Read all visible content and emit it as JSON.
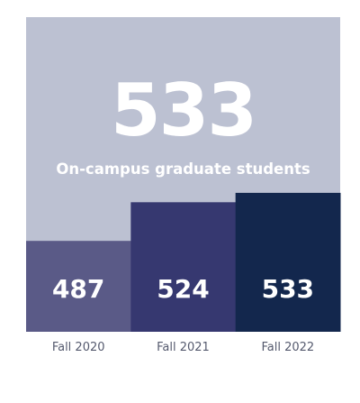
{
  "headline": {
    "value": "533",
    "subtitle": "On-campus graduate students"
  },
  "colors": {
    "panel_background": "#bcc1d2",
    "bars": [
      "#5a5a87",
      "#363870",
      "#13274d"
    ],
    "label_text": "#ffffff",
    "category_text": "#555a6e"
  },
  "chart_data": {
    "type": "bar",
    "title": "",
    "xlabel": "",
    "ylabel": "",
    "categories": [
      "Fall 2020",
      "Fall 2021",
      "Fall 2022"
    ],
    "values": [
      487,
      524,
      533
    ],
    "data_labels": [
      "487",
      "524",
      "533"
    ],
    "ylim": [
      400,
      545
    ],
    "grid": false,
    "legend": "none"
  }
}
